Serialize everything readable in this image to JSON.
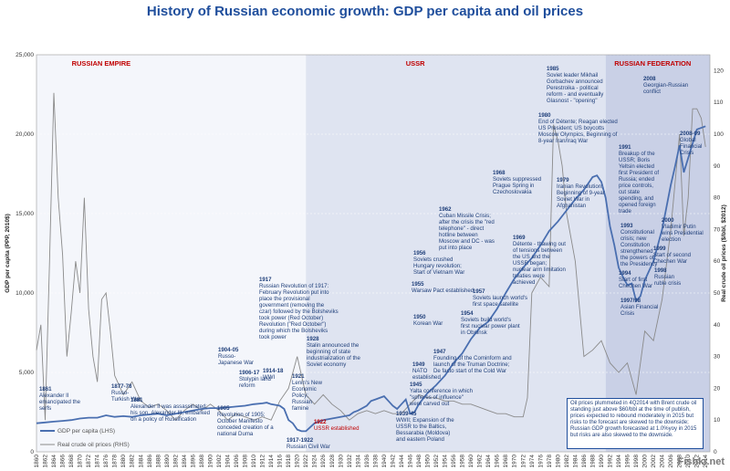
{
  "title": "History of Russian economic growth: GDP per capita and oil prices",
  "watermark": "Fishki.net",
  "note": "Oil prices plummeted in 4Q2014 with Brent crude oil standing just above $60/bbl at the time of publish, prices expected to rebound moderately in 2015 but risks to the forecast are skewed to the downside; Russian GDP growth forecasted at 1.0%yoy in 2015 but risks are also skewed to the downside.",
  "chart_data": {
    "type": "line",
    "title": "History of Russian economic growth: GDP per capita and oil prices",
    "ylabel": "GDP per capita (PPP, 2010$)",
    "ylabel_right": "Real crude oil prices ($/bbl, $2012)",
    "ylim": [
      0,
      25000
    ],
    "ylim_right": [
      0,
      125
    ],
    "y_ticks": [
      "0",
      "5,000",
      "10,000",
      "15,000",
      "20,000",
      "25,000"
    ],
    "y_ticks_right": [
      "0",
      "10",
      "20",
      "30",
      "40",
      "50",
      "60",
      "70",
      "80",
      "90",
      "100",
      "110",
      "120"
    ],
    "x_ticks": [
      "1860",
      "1862",
      "1864",
      "1866",
      "1868",
      "1870",
      "1872",
      "1874",
      "1876",
      "1878",
      "1880",
      "1882",
      "1884",
      "1886",
      "1888",
      "1890",
      "1892",
      "1894",
      "1896",
      "1898",
      "1900",
      "1902",
      "1904",
      "1906",
      "1908",
      "1910",
      "1912",
      "1914",
      "1916",
      "1918",
      "1920",
      "1922",
      "1924",
      "1926",
      "1928",
      "1930",
      "1932",
      "1934",
      "1936",
      "1938",
      "1940",
      "1942",
      "1944",
      "1946",
      "1948",
      "1950",
      "1952",
      "1954",
      "1956",
      "1958",
      "1960",
      "1962",
      "1964",
      "1966",
      "1968",
      "1970",
      "1972",
      "1974",
      "1976",
      "1978",
      "1980",
      "1982",
      "1984",
      "1986",
      "1988",
      "1990",
      "1992",
      "1994",
      "1996",
      "1998",
      "2000",
      "2002",
      "2004",
      "2006",
      "2008",
      "2010",
      "2012",
      "2014"
    ],
    "xlim": [
      1860,
      2015
    ],
    "legend": "bottom-left",
    "eras": [
      {
        "label": "RUSSIAN EMPIRE",
        "start": 1860,
        "end": 1922,
        "color": "#f4f6fb"
      },
      {
        "label": "USSR",
        "start": 1922,
        "end": 1991,
        "color": "#dfe4f1"
      },
      {
        "label": "RUSSIAN FEDERATION",
        "start": 1991,
        "end": 2015,
        "color": "#c9d0e6"
      }
    ],
    "series": [
      {
        "name": "GDP per capita (LHS)",
        "axis": "left",
        "color": "#4a6fb0",
        "x": [
          1860,
          1862,
          1864,
          1866,
          1868,
          1870,
          1872,
          1874,
          1876,
          1878,
          1880,
          1882,
          1884,
          1886,
          1888,
          1890,
          1892,
          1894,
          1896,
          1898,
          1900,
          1902,
          1904,
          1906,
          1908,
          1910,
          1912,
          1913,
          1914,
          1916,
          1917,
          1918,
          1919,
          1920,
          1921,
          1922,
          1924,
          1926,
          1928,
          1930,
          1932,
          1933,
          1934,
          1936,
          1937,
          1938,
          1940,
          1941,
          1942,
          1943,
          1944,
          1945,
          1946,
          1947,
          1948,
          1950,
          1952,
          1954,
          1956,
          1958,
          1960,
          1962,
          1964,
          1966,
          1968,
          1970,
          1972,
          1974,
          1976,
          1978,
          1980,
          1982,
          1984,
          1986,
          1988,
          1989,
          1990,
          1991,
          1992,
          1993,
          1994,
          1995,
          1996,
          1997,
          1998,
          1999,
          2000,
          2002,
          2004,
          2006,
          2007,
          2008,
          2009,
          2010,
          2012,
          2014
        ],
        "values": [
          1800,
          1850,
          1900,
          1950,
          2000,
          2100,
          2150,
          2150,
          2300,
          2200,
          2250,
          2200,
          2300,
          2350,
          2400,
          2300,
          2400,
          2500,
          2600,
          2700,
          2750,
          2750,
          2800,
          2850,
          2900,
          3000,
          3050,
          3100,
          3000,
          2900,
          2700,
          2000,
          1800,
          1400,
          1300,
          1300,
          1800,
          2000,
          2100,
          2200,
          2300,
          2500,
          2600,
          2900,
          3200,
          3300,
          3500,
          3200,
          2900,
          2700,
          3000,
          3300,
          2400,
          2500,
          3000,
          3700,
          4200,
          4800,
          5600,
          6200,
          7100,
          7800,
          8200,
          9000,
          10000,
          10900,
          11600,
          12200,
          13000,
          13900,
          14500,
          15200,
          15900,
          16500,
          17300,
          17400,
          17000,
          16000,
          14200,
          13000,
          11600,
          11000,
          10500,
          10600,
          9500,
          9800,
          10800,
          12000,
          14000,
          16800,
          18000,
          19300,
          17600,
          18500,
          20300,
          20500
        ]
      },
      {
        "name": "Real crude oil prices (RHS)",
        "axis": "right",
        "color": "#8a8a8a",
        "x": [
          1860,
          1861,
          1862,
          1863,
          1864,
          1865,
          1866,
          1867,
          1868,
          1869,
          1870,
          1871,
          1872,
          1873,
          1874,
          1875,
          1876,
          1877,
          1878,
          1880,
          1882,
          1884,
          1886,
          1888,
          1890,
          1892,
          1894,
          1896,
          1898,
          1900,
          1902,
          1904,
          1906,
          1908,
          1910,
          1912,
          1914,
          1916,
          1918,
          1920,
          1922,
          1924,
          1926,
          1928,
          1930,
          1932,
          1934,
          1936,
          1938,
          1940,
          1942,
          1944,
          1946,
          1948,
          1950,
          1952,
          1954,
          1956,
          1958,
          1960,
          1962,
          1964,
          1966,
          1968,
          1970,
          1972,
          1973,
          1974,
          1976,
          1978,
          1979,
          1980,
          1981,
          1982,
          1984,
          1986,
          1988,
          1990,
          1992,
          1994,
          1996,
          1998,
          2000,
          2002,
          2004,
          2006,
          2008,
          2009,
          2010,
          2011,
          2012,
          2013,
          2014
        ],
        "values": [
          32,
          40,
          10,
          60,
          113,
          80,
          62,
          30,
          44,
          60,
          50,
          80,
          45,
          30,
          22,
          48,
          50,
          38,
          24,
          18,
          22,
          16,
          14,
          15,
          13,
          10,
          13,
          15,
          13,
          15,
          13,
          10,
          12,
          11,
          10,
          11,
          10,
          16,
          20,
          30,
          18,
          15,
          18,
          15,
          13,
          10,
          12,
          13,
          12,
          13,
          12,
          12,
          15,
          18,
          17,
          17,
          16,
          16,
          15,
          15,
          14,
          13,
          12,
          12,
          11,
          11,
          17,
          50,
          55,
          52,
          103,
          98,
          90,
          75,
          60,
          30,
          32,
          35,
          28,
          25,
          28,
          18,
          38,
          35,
          48,
          70,
          100,
          68,
          80,
          108,
          108,
          105,
          96
        ]
      }
    ]
  },
  "eras_labels": [
    "RUSSIAN EMPIRE",
    "USSR",
    "RUSSIAN FEDERATION"
  ],
  "annotations": [
    {
      "year": "1861",
      "text": [
        "Alexander II",
        "emancipated the",
        "serfs"
      ]
    },
    {
      "year": "1877-78",
      "text": [
        "Russo-",
        "Turkish War"
      ]
    },
    {
      "year": "1881",
      "text": [
        "Alexander II was assassinated;",
        "his son, Alexander III, embarked",
        "on a policy of Russification"
      ]
    },
    {
      "year": "1904-05",
      "text": [
        "Russo-",
        "Japanese War"
      ]
    },
    {
      "year": "1905",
      "text": [
        "Revolution of 1905;",
        "October Manifesto",
        "conceded creation of a",
        "national Duma"
      ]
    },
    {
      "year": "1906-17",
      "text": [
        "Stolypin land",
        "reform"
      ]
    },
    {
      "year": "1914-18",
      "text": [
        "WWI"
      ]
    },
    {
      "year": "1917",
      "text": [
        "Russian Revolution of 1917:",
        "February Revolution put into",
        "place the provisional",
        "government (removing the",
        "czar) followed by the Bolsheviks",
        "took power (Red October)",
        "Revolution (\"Red October\")",
        "during which the Bolsheviks",
        "took power"
      ]
    },
    {
      "year": "1917-1922",
      "text": [
        "Russian Civil War"
      ]
    },
    {
      "year": "1921",
      "text": [
        "Lenin's New",
        "Economic",
        "Policy;",
        "Russian",
        "famine"
      ]
    },
    {
      "year": "1922",
      "text": [
        "USSR established"
      ]
    },
    {
      "year": "1928",
      "text": [
        "Stalin announced the",
        "beginning of state",
        "industrialization of the",
        "Soviet economy"
      ]
    },
    {
      "year": "1939-45",
      "text": [
        "WWII; Expansion of the",
        "USSR to the Baltics,",
        "Bessarabia (Moldova)",
        "and eastern Poland"
      ]
    },
    {
      "year": "1945",
      "text": [
        "Yalta conference in which",
        "\"spheres of influence\"",
        "were carved out"
      ]
    },
    {
      "year": "1947",
      "text": [
        "Founding of the Cominform and",
        "launch of the Truman Doctrine;",
        "De facto start of the Cold War"
      ]
    },
    {
      "year": "1949",
      "text": [
        "NATO",
        "established"
      ]
    },
    {
      "year": "1950",
      "text": [
        "Korean War"
      ]
    },
    {
      "year": "1954",
      "text": [
        "Soviets build world's",
        "first nuclear power plant",
        "in Obninsk"
      ]
    },
    {
      "year": "1955",
      "text": [
        "Warsaw Pact established"
      ]
    },
    {
      "year": "1956",
      "text": [
        "Soviets crushed",
        "Hungary revolution;",
        "Start of Vietnam War"
      ]
    },
    {
      "year": "1957",
      "text": [
        "Soviets launch world's",
        "first space satellite"
      ]
    },
    {
      "year": "1962",
      "text": [
        "Cuban Missile Crisis;",
        "after the crisis the \"red",
        "telephone\" - direct",
        "hotline between",
        "Moscow and DC - was",
        "put into place"
      ]
    },
    {
      "year": "1968",
      "text": [
        "Soviets suppressed",
        "Prague Spring in",
        "Czechoslovakia"
      ]
    },
    {
      "year": "1969",
      "text": [
        "Détente - thawing out",
        "of tensions between",
        "the US and the",
        "USSR began;",
        "nuclear arm limitation",
        "treaties were",
        "achieved"
      ]
    },
    {
      "year": "1979",
      "text": [
        "Iranian Revolution;",
        "Beginning of 9-year",
        "Soviet War in",
        "Afghanistan"
      ]
    },
    {
      "year": "1980",
      "text": [
        "End of Détente; Reagan elected",
        "US President; US boycotts",
        "Moscow Olympics, Beginning of",
        "8-year Iran/Iraq War"
      ]
    },
    {
      "year": "1985",
      "text": [
        "Soviet leader Mikhail",
        "Gorbachev announced",
        "Perestroika - political",
        "reform - and eventually",
        "Glasnost - \"opening\""
      ]
    },
    {
      "year": "1991",
      "text": [
        "Breakup of the",
        "USSR; Boris",
        "Yeltsin elected",
        "first President of",
        "Russia; ended",
        "price controls,",
        "cut state",
        "spending, and",
        "opened foreign",
        "trade"
      ]
    },
    {
      "year": "1993",
      "text": [
        "Constitutional",
        "crisis; new",
        "Constitution",
        "strengthened",
        "the powers of",
        "the Presidency"
      ]
    },
    {
      "year": "1994",
      "text": [
        "Start of first",
        "Chechen War"
      ]
    },
    {
      "year": "1997/98",
      "text": [
        "Asian Financial",
        "Crisis"
      ]
    },
    {
      "year": "1998",
      "text": [
        "Russian",
        "ruble crisis"
      ]
    },
    {
      "year": "1999",
      "text": [
        "Start of second",
        "Chechen War"
      ]
    },
    {
      "year": "2000",
      "text": [
        "Vladimir Putin",
        "wins Presidential",
        "election"
      ]
    },
    {
      "year": "2008",
      "text": [
        "Georgian-Russian",
        "conflict"
      ]
    },
    {
      "year": "2008-09",
      "text": [
        "Global",
        "Financial",
        "Crisis"
      ]
    }
  ]
}
